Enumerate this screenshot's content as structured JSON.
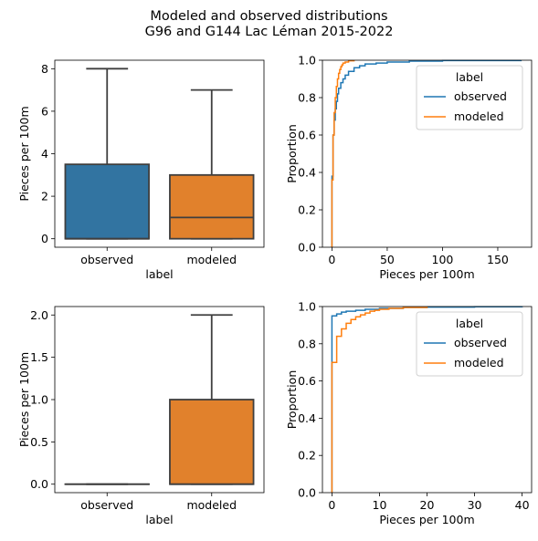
{
  "figure": {
    "title_line1": "Modeled and observed distributions",
    "title_line2": "G96 and G144 Lac Léman 2015-2022"
  },
  "colors": {
    "observed": "#1f77b4",
    "modeled": "#ff7f0e",
    "box_observed": "#3274a1",
    "box_modeled": "#e1812c",
    "box_line": "#3f3f3f"
  },
  "chart_data": [
    {
      "id": "box-top",
      "type": "box",
      "xlabel": "label",
      "ylabel": "Pieces per 100m",
      "categories": [
        "observed",
        "modeled"
      ],
      "boxes": [
        {
          "name": "observed",
          "whislo": 0,
          "q1": 0,
          "med": 0,
          "q3": 3.5,
          "whishi": 8
        },
        {
          "name": "modeled",
          "whislo": 0,
          "q1": 0,
          "med": 1,
          "q3": 3,
          "whishi": 7
        }
      ],
      "ylim": [
        -0.4,
        8.4
      ],
      "yticks": [
        0,
        2,
        4,
        6,
        8
      ],
      "ytick_labels": [
        "0",
        "2",
        "4",
        "6",
        "8"
      ]
    },
    {
      "id": "ecdf-top",
      "type": "line",
      "step": true,
      "xlabel": "Pieces per 100m",
      "ylabel": "Proportion",
      "legend": {
        "title": "label",
        "position": "top-right"
      },
      "xlim": [
        -8.6,
        180.6
      ],
      "ylim": [
        0,
        1
      ],
      "xticks": [
        0,
        50,
        100,
        150
      ],
      "xtick_labels": [
        "0",
        "50",
        "100",
        "150"
      ],
      "yticks": [
        0,
        0.2,
        0.4,
        0.6,
        0.8,
        1.0
      ],
      "ytick_labels": [
        "0.0",
        "0.2",
        "0.4",
        "0.6",
        "0.8",
        "1.0"
      ],
      "series": [
        {
          "name": "observed",
          "x": [
            0,
            1,
            2,
            3,
            4,
            5,
            6,
            8,
            10,
            12,
            15,
            20,
            25,
            30,
            40,
            50,
            70,
            100,
            171
          ],
          "y": [
            0.38,
            0.6,
            0.68,
            0.74,
            0.78,
            0.82,
            0.85,
            0.88,
            0.9,
            0.92,
            0.94,
            0.96,
            0.97,
            0.98,
            0.985,
            0.99,
            0.995,
            0.998,
            1.0
          ]
        },
        {
          "name": "modeled",
          "x": [
            0,
            1,
            2,
            3,
            4,
            5,
            6,
            7,
            8,
            9,
            10,
            12,
            15,
            20
          ],
          "y": [
            0.36,
            0.6,
            0.72,
            0.8,
            0.86,
            0.9,
            0.93,
            0.95,
            0.965,
            0.975,
            0.985,
            0.99,
            0.997,
            1.0
          ]
        }
      ]
    },
    {
      "id": "box-bottom",
      "type": "box",
      "xlabel": "label",
      "ylabel": "Pieces per 100m",
      "categories": [
        "observed",
        "modeled"
      ],
      "boxes": [
        {
          "name": "observed",
          "whislo": 0,
          "q1": 0,
          "med": 0,
          "q3": 0,
          "whishi": 0
        },
        {
          "name": "modeled",
          "whislo": 0,
          "q1": 0,
          "med": 0,
          "q3": 1,
          "whishi": 2
        }
      ],
      "ylim": [
        -0.1,
        2.1
      ],
      "yticks": [
        0,
        0.5,
        1,
        1.5,
        2
      ],
      "ytick_labels": [
        "0.0",
        "0.5",
        "1.0",
        "1.5",
        "2.0"
      ]
    },
    {
      "id": "ecdf-bottom",
      "type": "line",
      "step": true,
      "xlabel": "Pieces per 100m",
      "ylabel": "Proportion",
      "legend": {
        "title": "label",
        "position": "top-right"
      },
      "xlim": [
        -2,
        42
      ],
      "ylim": [
        0,
        1
      ],
      "xticks": [
        0,
        10,
        20,
        30,
        40
      ],
      "xtick_labels": [
        "0",
        "10",
        "20",
        "30",
        "40"
      ],
      "yticks": [
        0,
        0.2,
        0.4,
        0.6,
        0.8,
        1.0
      ],
      "ytick_labels": [
        "0.0",
        "0.2",
        "0.4",
        "0.6",
        "0.8",
        "1.0"
      ],
      "series": [
        {
          "name": "observed",
          "x": [
            0,
            1,
            2,
            3,
            5,
            7,
            10,
            15,
            20,
            30,
            40
          ],
          "y": [
            0.95,
            0.96,
            0.97,
            0.975,
            0.98,
            0.985,
            0.99,
            0.995,
            0.997,
            0.999,
            1.0
          ]
        },
        {
          "name": "modeled",
          "x": [
            0,
            1,
            2,
            3,
            4,
            5,
            6,
            7,
            8,
            9,
            10,
            12,
            15,
            20
          ],
          "y": [
            0.7,
            0.84,
            0.88,
            0.91,
            0.93,
            0.945,
            0.955,
            0.965,
            0.975,
            0.98,
            0.985,
            0.99,
            0.995,
            1.0
          ]
        }
      ]
    }
  ]
}
